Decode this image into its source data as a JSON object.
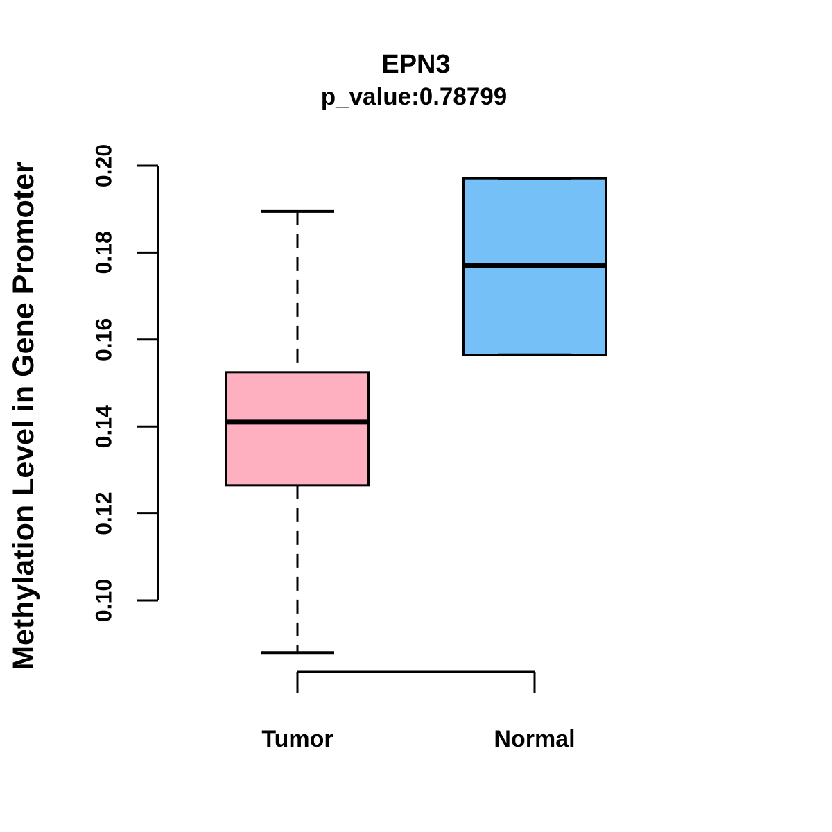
{
  "chart_data": {
    "type": "boxplot",
    "title": "EPN3",
    "subtitle": "p_value:0.78799",
    "p_value_label": "p_value:0.78799",
    "ylabel": "Methylation Level in Gene Promoter",
    "xlabel": "",
    "categories": [
      "Tumor",
      "Normal"
    ],
    "ylim": [
      0.085,
      0.205
    ],
    "y_ticks": [
      0.1,
      0.12,
      0.14,
      0.16,
      0.18,
      0.2
    ],
    "y_tick_labels": [
      "0.10",
      "0.12",
      "0.14",
      "0.16",
      "0.18",
      "0.20"
    ],
    "grid": false,
    "legend": "none",
    "line_color": "#000000",
    "background_color": "#ffffff",
    "series": [
      {
        "name": "Tumor",
        "fill_color": "#FFB0C0",
        "whisker_low": 0.088,
        "q1": 0.1265,
        "median": 0.141,
        "q3": 0.1525,
        "whisker_high": 0.1895,
        "whisker_style": "dashed"
      },
      {
        "name": "Normal",
        "fill_color": "#74C0F7",
        "whisker_low": 0.1565,
        "q1": 0.1565,
        "median": 0.177,
        "q3": 0.1971,
        "whisker_high": 0.1971,
        "whisker_style": "dashed"
      }
    ]
  }
}
